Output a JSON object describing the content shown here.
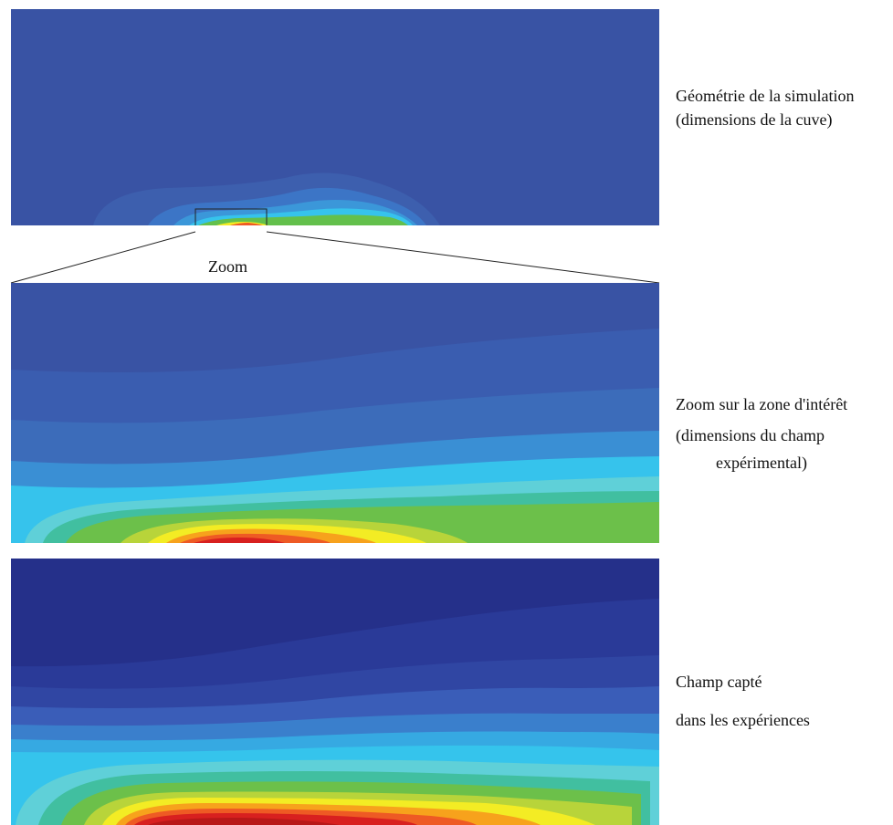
{
  "panels": {
    "geometry": {
      "caption_line1": "Géométrie de la simulation",
      "caption_line2": "(dimensions de la cuve)"
    },
    "zoom_link": {
      "label": "Zoom"
    },
    "zoomed_simulation": {
      "caption_line1": "Zoom sur la zone d'intérêt",
      "caption_line2": "(dimensions du champ",
      "caption_line3": "expérimental)"
    },
    "experiment": {
      "caption_line1": "Champ capté",
      "caption_line2": "dans les expériences"
    }
  },
  "colors": {
    "background_blue": "#3953a4",
    "deep_blue": "#25308a",
    "mid_blue": "#3a6ec0",
    "light_blue": "#3a97d8",
    "cyan": "#35c4ec",
    "aqua": "#5fd0d8",
    "teal": "#41bfa0",
    "green": "#6cc04a",
    "yellow_green": "#b8d43a",
    "yellow": "#f3ec24",
    "orange": "#f7a21c",
    "red_orange": "#ee5a24",
    "red": "#d8201f"
  }
}
